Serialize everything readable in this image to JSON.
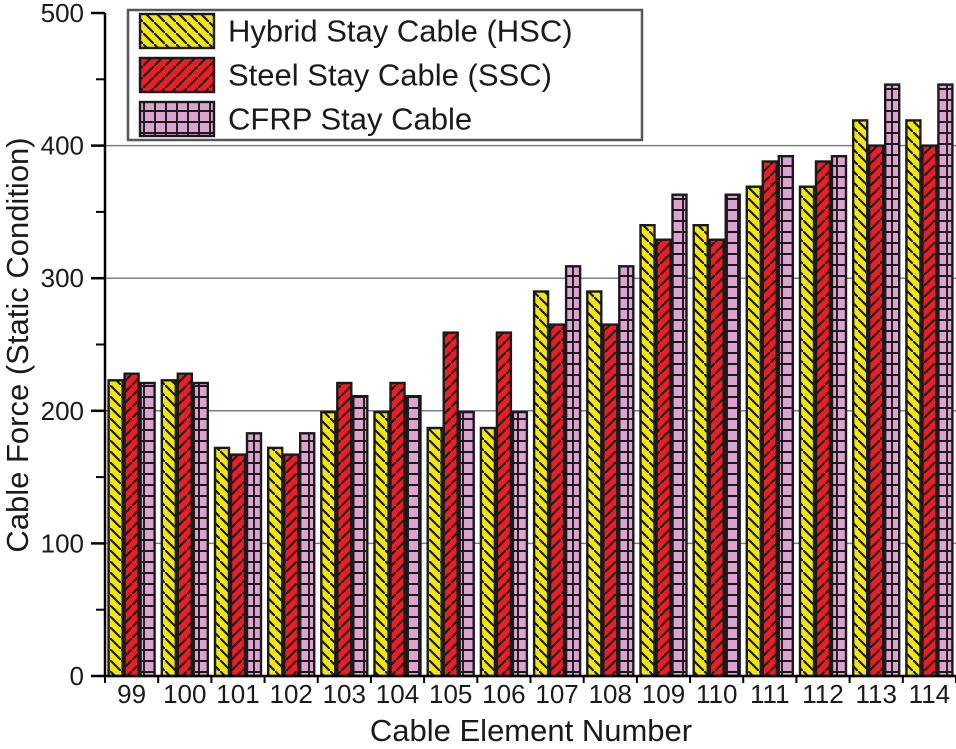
{
  "chart_data": {
    "type": "bar",
    "title": "",
    "xlabel": "Cable Element Number",
    "ylabel": "Cable Force (Static Condition)",
    "categories": [
      "99",
      "100",
      "101",
      "102",
      "103",
      "104",
      "105",
      "106",
      "107",
      "108",
      "109",
      "110",
      "111",
      "112",
      "113",
      "114"
    ],
    "series": [
      {
        "key": "hsc",
        "name": "Hybrid Stay Cable (HSC)",
        "color": "#F2E60F",
        "hatch": "backslash",
        "values": [
          223,
          223,
          172,
          172,
          199,
          199,
          187,
          187,
          290,
          290,
          340,
          340,
          369,
          369,
          419,
          419
        ]
      },
      {
        "key": "ssc",
        "name": "Steel Stay Cable (SSC)",
        "color": "#EE1C25",
        "hatch": "slash",
        "values": [
          228,
          228,
          167,
          167,
          221,
          221,
          259,
          259,
          265,
          265,
          329,
          329,
          388,
          388,
          400,
          400
        ]
      },
      {
        "key": "cfrp",
        "name": "CFRP Stay Cable",
        "color": "#DCA3D1",
        "hatch": "grid",
        "values": [
          221,
          221,
          183,
          183,
          211,
          211,
          199,
          199,
          309,
          309,
          363,
          363,
          392,
          392,
          446,
          446
        ]
      }
    ],
    "ylim": [
      0,
      500
    ],
    "yticks": [
      0,
      100,
      200,
      300,
      400,
      500
    ],
    "minor_tick_step": 50,
    "grid": "horizontal",
    "legend_position": "top-left",
    "colors": {
      "background": "#FFFFFF",
      "grid": "#7F7F7F",
      "axis": "#000000",
      "bar_outline": "#1A1A1A",
      "hatch": "#1A1A1A",
      "text": "#1A1A1A",
      "legend_border": "#55565A"
    }
  }
}
